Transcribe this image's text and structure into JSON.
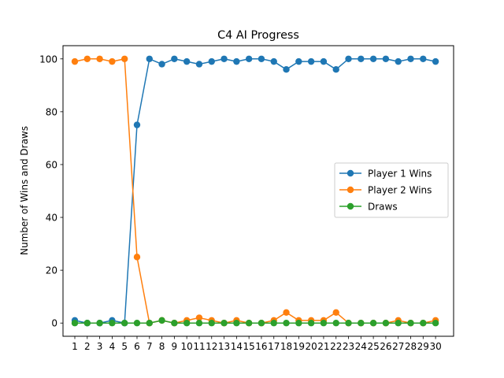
{
  "chart_data": {
    "type": "line",
    "title": "C4 AI Progress",
    "xlabel": "",
    "ylabel": "Number of Wins and Draws",
    "x": [
      1,
      2,
      3,
      4,
      5,
      6,
      7,
      8,
      9,
      10,
      11,
      12,
      13,
      14,
      15,
      16,
      17,
      18,
      19,
      20,
      21,
      22,
      23,
      24,
      25,
      26,
      27,
      28,
      29,
      30
    ],
    "xlim": [
      0.05,
      31.45
    ],
    "ylim": [
      -5,
      105
    ],
    "yticks": [
      0,
      20,
      40,
      60,
      80,
      100
    ],
    "grid": false,
    "legend_position": "center-right",
    "series": [
      {
        "name": "Player 1 Wins",
        "color": "#1f77b4",
        "values": [
          1,
          0,
          0,
          1,
          0,
          75,
          100,
          98,
          100,
          99,
          98,
          99,
          100,
          99,
          100,
          100,
          99,
          96,
          99,
          99,
          99,
          96,
          100,
          100,
          100,
          100,
          99,
          100,
          100,
          99
        ]
      },
      {
        "name": "Player 2 Wins",
        "color": "#ff7f0e",
        "values": [
          99,
          100,
          100,
          99,
          100,
          25,
          0,
          1,
          0,
          1,
          2,
          1,
          0,
          1,
          0,
          0,
          1,
          4,
          1,
          1,
          1,
          4,
          0,
          0,
          0,
          0,
          1,
          0,
          0,
          1
        ]
      },
      {
        "name": "Draws",
        "color": "#2ca02c",
        "values": [
          0,
          0,
          0,
          0,
          0,
          0,
          0,
          1,
          0,
          0,
          0,
          0,
          0,
          0,
          0,
          0,
          0,
          0,
          0,
          0,
          0,
          0,
          0,
          0,
          0,
          0,
          0,
          0,
          0,
          0
        ]
      }
    ]
  }
}
